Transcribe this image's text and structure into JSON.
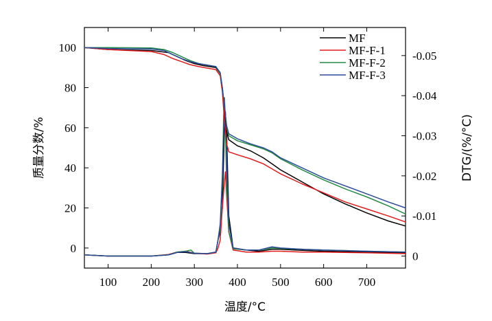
{
  "chart_data": {
    "type": "line",
    "title": "",
    "xlabel": "温度/°C",
    "ylabel_left": "质量分数/%",
    "ylabel_right": "DTG/(%/°C)",
    "xlim": [
      45,
      790
    ],
    "ylim_left": [
      -10,
      110
    ],
    "ylim_right": [
      0.003,
      -0.057
    ],
    "x_ticks": [
      100,
      200,
      300,
      400,
      500,
      600,
      700
    ],
    "x_tick_labels": [
      "100",
      "200",
      "300",
      "400",
      "500",
      "600",
      "700"
    ],
    "y_left_ticks": [
      0,
      20,
      40,
      60,
      80,
      100
    ],
    "y_left_tick_labels": [
      "0",
      "20",
      "40",
      "60",
      "80",
      "100"
    ],
    "y_right_ticks": [
      0,
      -0.01,
      -0.02,
      -0.03,
      -0.04,
      -0.05
    ],
    "y_right_tick_labels": [
      "0",
      "-0.01",
      "-0.02",
      "-0.03",
      "-0.04",
      "-0.05"
    ],
    "grid": false,
    "legend_position": "top-right",
    "tg_series": [
      {
        "name": "MF",
        "color": "#000000",
        "points": [
          [
            45,
            100
          ],
          [
            100,
            99
          ],
          [
            200,
            98.5
          ],
          [
            240,
            97.5
          ],
          [
            260,
            95.5
          ],
          [
            280,
            93.5
          ],
          [
            300,
            92
          ],
          [
            320,
            91
          ],
          [
            350,
            90
          ],
          [
            360,
            87
          ],
          [
            365,
            80
          ],
          [
            370,
            68
          ],
          [
            375,
            58
          ],
          [
            380,
            54
          ],
          [
            400,
            51
          ],
          [
            430,
            48.5
          ],
          [
            460,
            45
          ],
          [
            480,
            42
          ],
          [
            500,
            39
          ],
          [
            550,
            33
          ],
          [
            600,
            27
          ],
          [
            650,
            22
          ],
          [
            700,
            17.5
          ],
          [
            750,
            13.5
          ],
          [
            790,
            11
          ]
        ]
      },
      {
        "name": "MF-F-1",
        "color": "#e31a1c",
        "points": [
          [
            45,
            100
          ],
          [
            100,
            99
          ],
          [
            200,
            98
          ],
          [
            230,
            96.5
          ],
          [
            250,
            94.5
          ],
          [
            270,
            93
          ],
          [
            290,
            91.5
          ],
          [
            310,
            90.5
          ],
          [
            350,
            89
          ],
          [
            360,
            86
          ],
          [
            365,
            78
          ],
          [
            370,
            63
          ],
          [
            375,
            52
          ],
          [
            380,
            48
          ],
          [
            400,
            46.5
          ],
          [
            430,
            44.5
          ],
          [
            460,
            42
          ],
          [
            480,
            39.5
          ],
          [
            500,
            37
          ],
          [
            550,
            32
          ],
          [
            600,
            27.5
          ],
          [
            650,
            23
          ],
          [
            700,
            19.5
          ],
          [
            750,
            16
          ],
          [
            790,
            13
          ]
        ]
      },
      {
        "name": "MF-F-2",
        "color": "#238b45",
        "points": [
          [
            45,
            100
          ],
          [
            100,
            100
          ],
          [
            200,
            99.8
          ],
          [
            230,
            99
          ],
          [
            250,
            97.5
          ],
          [
            270,
            95.5
          ],
          [
            290,
            93.5
          ],
          [
            310,
            92
          ],
          [
            350,
            90.5
          ],
          [
            360,
            87
          ],
          [
            365,
            80
          ],
          [
            370,
            70
          ],
          [
            375,
            60
          ],
          [
            380,
            56
          ],
          [
            400,
            53.5
          ],
          [
            430,
            51.5
          ],
          [
            460,
            49.5
          ],
          [
            480,
            47.5
          ],
          [
            500,
            44.5
          ],
          [
            550,
            39
          ],
          [
            600,
            34
          ],
          [
            650,
            29.5
          ],
          [
            700,
            25.5
          ],
          [
            750,
            21
          ],
          [
            790,
            17
          ]
        ]
      },
      {
        "name": "MF-F-3",
        "color": "#2c4a9a",
        "points": [
          [
            45,
            100
          ],
          [
            100,
            99.5
          ],
          [
            200,
            99.3
          ],
          [
            230,
            98.5
          ],
          [
            250,
            96.5
          ],
          [
            270,
            94.5
          ],
          [
            290,
            93
          ],
          [
            310,
            92
          ],
          [
            350,
            90.5
          ],
          [
            360,
            87.5
          ],
          [
            365,
            80
          ],
          [
            370,
            70
          ],
          [
            375,
            61
          ],
          [
            380,
            57
          ],
          [
            400,
            54.5
          ],
          [
            430,
            52
          ],
          [
            460,
            50
          ],
          [
            480,
            48
          ],
          [
            500,
            45
          ],
          [
            550,
            40
          ],
          [
            600,
            35
          ],
          [
            650,
            31
          ],
          [
            700,
            27
          ],
          [
            750,
            23
          ],
          [
            790,
            20
          ]
        ]
      }
    ],
    "dtg_series": [
      {
        "name": "MF",
        "color": "#000000",
        "points": [
          [
            45,
            -0.0003
          ],
          [
            100,
            0
          ],
          [
            200,
            0
          ],
          [
            240,
            -0.0003
          ],
          [
            260,
            -0.0009
          ],
          [
            280,
            -0.0009
          ],
          [
            300,
            -0.0006
          ],
          [
            330,
            -0.0006
          ],
          [
            350,
            -0.001
          ],
          [
            355,
            -0.004
          ],
          [
            360,
            -0.006
          ],
          [
            365,
            -0.012
          ],
          [
            370,
            -0.033
          ],
          [
            372,
            -0.036
          ],
          [
            375,
            -0.03
          ],
          [
            380,
            -0.01
          ],
          [
            390,
            -0.002
          ],
          [
            420,
            -0.0015
          ],
          [
            450,
            -0.0012
          ],
          [
            480,
            -0.0017
          ],
          [
            500,
            -0.0017
          ],
          [
            550,
            -0.0014
          ],
          [
            600,
            -0.0012
          ],
          [
            700,
            -0.001
          ],
          [
            790,
            -0.0008
          ]
        ]
      },
      {
        "name": "MF-F-1",
        "color": "#e31a1c",
        "points": [
          [
            45,
            -0.0003
          ],
          [
            100,
            0
          ],
          [
            200,
            0
          ],
          [
            240,
            -0.0004
          ],
          [
            260,
            -0.001
          ],
          [
            280,
            -0.0012
          ],
          [
            300,
            -0.0007
          ],
          [
            330,
            -0.0005
          ],
          [
            350,
            -0.0008
          ],
          [
            355,
            -0.002
          ],
          [
            360,
            -0.004
          ],
          [
            365,
            -0.012
          ],
          [
            370,
            -0.019
          ],
          [
            372,
            -0.021
          ],
          [
            375,
            -0.015
          ],
          [
            380,
            -0.006
          ],
          [
            390,
            -0.0015
          ],
          [
            420,
            -0.001
          ],
          [
            450,
            -0.001
          ],
          [
            480,
            -0.0012
          ],
          [
            500,
            -0.0012
          ],
          [
            550,
            -0.001
          ],
          [
            600,
            -0.001
          ],
          [
            700,
            -0.0008
          ],
          [
            790,
            -0.0006
          ]
        ]
      },
      {
        "name": "MF-F-2",
        "color": "#238b45",
        "points": [
          [
            45,
            -0.0003
          ],
          [
            100,
            0
          ],
          [
            200,
            0
          ],
          [
            240,
            -0.0003
          ],
          [
            260,
            -0.001
          ],
          [
            280,
            -0.0012
          ],
          [
            292,
            -0.0015
          ],
          [
            300,
            -0.0007
          ],
          [
            330,
            -0.0006
          ],
          [
            350,
            -0.001
          ],
          [
            355,
            -0.004
          ],
          [
            360,
            -0.007
          ],
          [
            365,
            -0.018
          ],
          [
            368,
            -0.035
          ],
          [
            370,
            -0.0395
          ],
          [
            372,
            -0.032
          ],
          [
            375,
            -0.018
          ],
          [
            380,
            -0.006
          ],
          [
            390,
            -0.0018
          ],
          [
            420,
            -0.0015
          ],
          [
            450,
            -0.0015
          ],
          [
            480,
            -0.002
          ],
          [
            500,
            -0.0019
          ],
          [
            550,
            -0.0017
          ],
          [
            600,
            -0.0015
          ],
          [
            700,
            -0.0012
          ],
          [
            790,
            -0.001
          ]
        ]
      },
      {
        "name": "MF-F-3",
        "color": "#2c4a9a",
        "points": [
          [
            45,
            -0.0003
          ],
          [
            100,
            0
          ],
          [
            200,
            0
          ],
          [
            240,
            -0.0003
          ],
          [
            260,
            -0.0009
          ],
          [
            280,
            -0.0011
          ],
          [
            300,
            -0.0007
          ],
          [
            330,
            -0.0006
          ],
          [
            350,
            -0.001
          ],
          [
            355,
            -0.004
          ],
          [
            360,
            -0.008
          ],
          [
            365,
            -0.02
          ],
          [
            370,
            -0.038
          ],
          [
            373,
            -0.034
          ],
          [
            376,
            -0.02
          ],
          [
            380,
            -0.008
          ],
          [
            390,
            -0.002
          ],
          [
            420,
            -0.0015
          ],
          [
            450,
            -0.0015
          ],
          [
            480,
            -0.0023
          ],
          [
            500,
            -0.002
          ],
          [
            550,
            -0.0017
          ],
          [
            600,
            -0.0015
          ],
          [
            700,
            -0.0012
          ],
          [
            790,
            -0.001
          ]
        ]
      }
    ]
  }
}
